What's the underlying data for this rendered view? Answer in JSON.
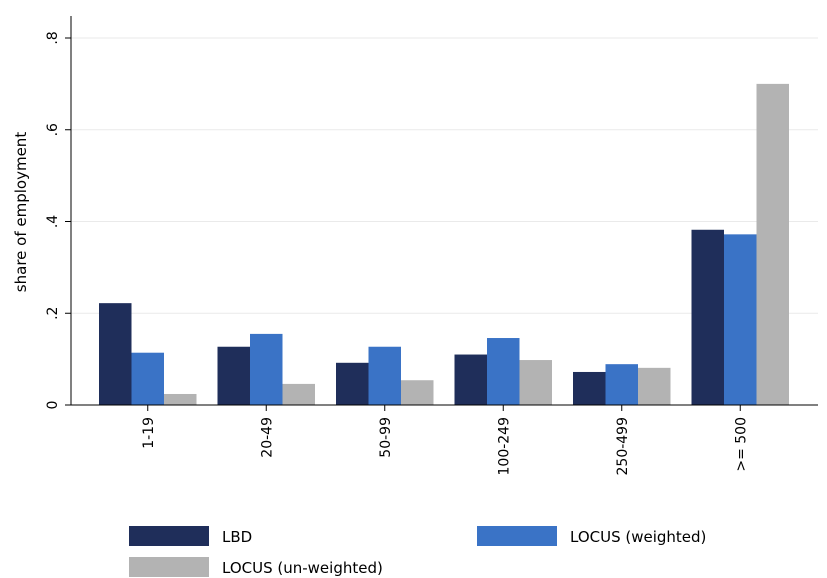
{
  "chart_data": {
    "type": "bar",
    "ylabel": "share of employment",
    "xlabel": "",
    "ylim": [
      0,
      0.8
    ],
    "yticks": [
      {
        "value": 0,
        "label": "0"
      },
      {
        "value": 0.2,
        "label": ".2"
      },
      {
        "value": 0.4,
        "label": ".4"
      },
      {
        "value": 0.6,
        "label": ".6"
      },
      {
        "value": 0.8,
        "label": ".8"
      }
    ],
    "grid": true,
    "legend_position": "bottom",
    "categories": [
      "1-19",
      "20-49",
      "50-99",
      "100-249",
      "250-499",
      ">= 500"
    ],
    "series": [
      {
        "name": "LBD",
        "color": "#1f2e5a",
        "values": [
          0.222,
          0.127,
          0.092,
          0.11,
          0.072,
          0.382
        ]
      },
      {
        "name": "LOCUS (weighted)",
        "color": "#3a73c6",
        "values": [
          0.114,
          0.155,
          0.127,
          0.146,
          0.089,
          0.372
        ]
      },
      {
        "name": "LOCUS (un-weighted)",
        "color": "#b3b3b3",
        "values": [
          0.024,
          0.046,
          0.054,
          0.098,
          0.081,
          0.7
        ]
      }
    ]
  }
}
